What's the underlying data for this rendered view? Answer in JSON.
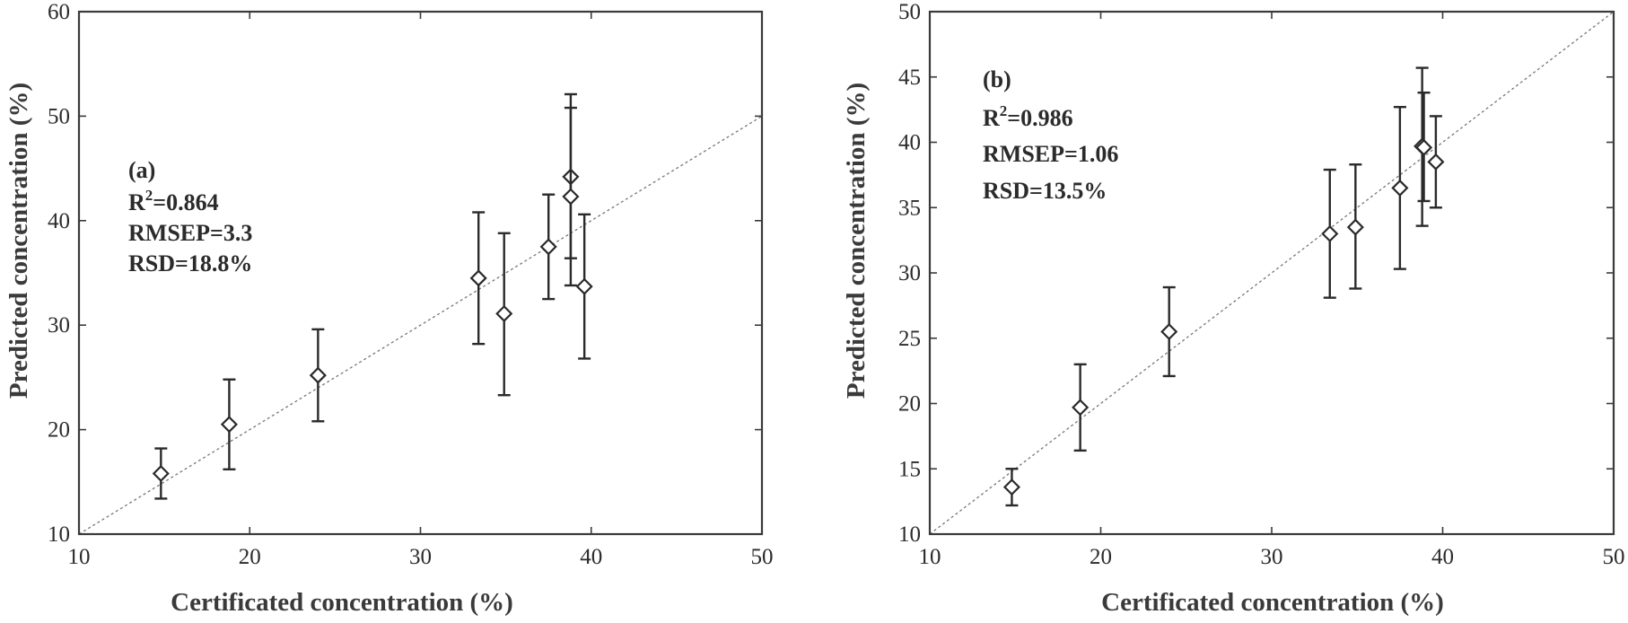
{
  "chart_data": [
    {
      "type": "scatter",
      "panel": "(a)",
      "xlabel": "Certificated concentration (%)",
      "ylabel": "Predicted concentration (%)",
      "xlim": [
        10,
        50
      ],
      "ylim": [
        10,
        60
      ],
      "xticks": [
        "10",
        "20",
        "30",
        "40",
        "50"
      ],
      "yticks": [
        "10",
        "20",
        "30",
        "40",
        "50",
        "60"
      ],
      "reference_line": "y = x",
      "stats": {
        "r2": "R",
        "r2_sup": "2",
        "r2_value": "=0.864",
        "rmsep": "RMSEP=3.3",
        "rsd": "RSD=18.8%"
      },
      "points": [
        {
          "x": 14.8,
          "y": 15.8,
          "lo": 13.4,
          "hi": 18.2
        },
        {
          "x": 18.8,
          "y": 20.5,
          "lo": 16.2,
          "hi": 24.8
        },
        {
          "x": 24.0,
          "y": 25.2,
          "lo": 20.8,
          "hi": 29.6
        },
        {
          "x": 33.4,
          "y": 34.5,
          "lo": 28.2,
          "hi": 40.8
        },
        {
          "x": 34.9,
          "y": 31.1,
          "lo": 23.3,
          "hi": 38.8
        },
        {
          "x": 37.5,
          "y": 37.5,
          "lo": 32.5,
          "hi": 42.5
        },
        {
          "x": 38.8,
          "y": 44.2,
          "lo": 36.4,
          "hi": 52.1
        },
        {
          "x": 38.8,
          "y": 42.3,
          "lo": 33.8,
          "hi": 50.8
        },
        {
          "x": 39.6,
          "y": 33.7,
          "lo": 26.8,
          "hi": 40.6
        }
      ]
    },
    {
      "type": "scatter",
      "panel": "(b)",
      "xlabel": "Certificated concentration (%)",
      "ylabel": "Predicted concentration (%)",
      "xlim": [
        10,
        50
      ],
      "ylim": [
        10,
        50
      ],
      "xticks": [
        "10",
        "20",
        "30",
        "40",
        "50"
      ],
      "yticks": [
        "10",
        "15",
        "20",
        "25",
        "30",
        "35",
        "40",
        "45",
        "50"
      ],
      "reference_line": "y = x",
      "stats": {
        "r2": "R",
        "r2_sup": "2",
        "r2_value": "=0.986",
        "rmsep": "RMSEP=1.06",
        "rsd": "RSD=13.5%"
      },
      "points": [
        {
          "x": 14.8,
          "y": 13.6,
          "lo": 12.2,
          "hi": 15.0
        },
        {
          "x": 18.8,
          "y": 19.7,
          "lo": 16.4,
          "hi": 23.0
        },
        {
          "x": 24.0,
          "y": 25.5,
          "lo": 22.1,
          "hi": 28.9
        },
        {
          "x": 33.4,
          "y": 33.0,
          "lo": 28.1,
          "hi": 37.9
        },
        {
          "x": 34.9,
          "y": 33.5,
          "lo": 28.8,
          "hi": 38.3
        },
        {
          "x": 37.5,
          "y": 36.5,
          "lo": 30.3,
          "hi": 42.7
        },
        {
          "x": 38.8,
          "y": 39.7,
          "lo": 33.6,
          "hi": 45.7
        },
        {
          "x": 38.9,
          "y": 39.6,
          "lo": 35.5,
          "hi": 43.8
        },
        {
          "x": 39.6,
          "y": 38.5,
          "lo": 35.0,
          "hi": 42.0
        }
      ]
    }
  ]
}
